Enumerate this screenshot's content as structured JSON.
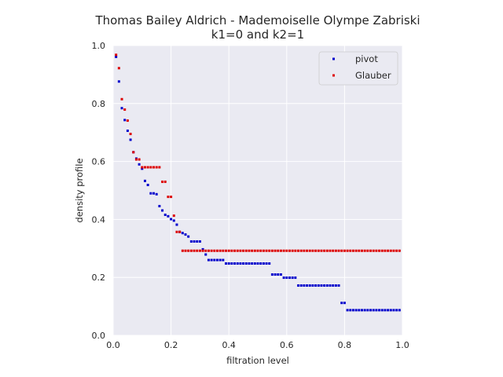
{
  "chart_data": {
    "type": "scatter",
    "title": "Thomas Bailey Aldrich - Mademoiselle Olympe Zabriski",
    "subtitle": "k1=0 and k2=1",
    "xlabel": "filtration level",
    "ylabel": "density profile",
    "xlim": [
      0.0,
      1.0
    ],
    "ylim": [
      0.0,
      1.0
    ],
    "xticks": [
      "0.0",
      "0.2",
      "0.4",
      "0.6",
      "0.8",
      "1.0"
    ],
    "yticks": [
      "0.0",
      "0.2",
      "0.4",
      "0.6",
      "0.8",
      "1.0"
    ],
    "grid": true,
    "legend_position": "top-right",
    "series": [
      {
        "name": "pivot",
        "color": "#0000cc",
        "points": [
          [
            0.01,
            0.961
          ],
          [
            0.02,
            0.876
          ],
          [
            0.03,
            0.784
          ],
          [
            0.04,
            0.743
          ],
          [
            0.05,
            0.706
          ],
          [
            0.06,
            0.675
          ],
          [
            0.07,
            0.632
          ],
          [
            0.08,
            0.61
          ],
          [
            0.09,
            0.59
          ],
          [
            0.1,
            0.575
          ],
          [
            0.11,
            0.533
          ],
          [
            0.12,
            0.519
          ],
          [
            0.13,
            0.49
          ],
          [
            0.14,
            0.49
          ],
          [
            0.15,
            0.487
          ],
          [
            0.16,
            0.446
          ],
          [
            0.17,
            0.431
          ],
          [
            0.18,
            0.416
          ],
          [
            0.19,
            0.411
          ],
          [
            0.2,
            0.401
          ],
          [
            0.21,
            0.396
          ],
          [
            0.22,
            0.382
          ],
          [
            0.23,
            0.357
          ],
          [
            0.24,
            0.353
          ],
          [
            0.25,
            0.348
          ],
          [
            0.26,
            0.341
          ],
          [
            0.27,
            0.324
          ],
          [
            0.28,
            0.324
          ],
          [
            0.29,
            0.324
          ],
          [
            0.3,
            0.324
          ],
          [
            0.31,
            0.297
          ],
          [
            0.32,
            0.279
          ],
          [
            0.33,
            0.26
          ],
          [
            0.34,
            0.26
          ],
          [
            0.35,
            0.26
          ],
          [
            0.36,
            0.26
          ],
          [
            0.37,
            0.26
          ],
          [
            0.38,
            0.26
          ],
          [
            0.39,
            0.248
          ],
          [
            0.4,
            0.248
          ],
          [
            0.41,
            0.248
          ],
          [
            0.42,
            0.248
          ],
          [
            0.43,
            0.248
          ],
          [
            0.44,
            0.248
          ],
          [
            0.45,
            0.248
          ],
          [
            0.46,
            0.248
          ],
          [
            0.47,
            0.248
          ],
          [
            0.48,
            0.248
          ],
          [
            0.49,
            0.248
          ],
          [
            0.5,
            0.248
          ],
          [
            0.51,
            0.248
          ],
          [
            0.52,
            0.248
          ],
          [
            0.53,
            0.248
          ],
          [
            0.54,
            0.248
          ],
          [
            0.55,
            0.21
          ],
          [
            0.56,
            0.21
          ],
          [
            0.57,
            0.21
          ],
          [
            0.58,
            0.21
          ],
          [
            0.59,
            0.199
          ],
          [
            0.6,
            0.199
          ],
          [
            0.61,
            0.199
          ],
          [
            0.62,
            0.199
          ],
          [
            0.63,
            0.199
          ],
          [
            0.64,
            0.172
          ],
          [
            0.65,
            0.172
          ],
          [
            0.66,
            0.172
          ],
          [
            0.67,
            0.172
          ],
          [
            0.68,
            0.172
          ],
          [
            0.69,
            0.172
          ],
          [
            0.7,
            0.172
          ],
          [
            0.71,
            0.172
          ],
          [
            0.72,
            0.172
          ],
          [
            0.73,
            0.172
          ],
          [
            0.74,
            0.172
          ],
          [
            0.75,
            0.172
          ],
          [
            0.76,
            0.172
          ],
          [
            0.77,
            0.172
          ],
          [
            0.78,
            0.172
          ],
          [
            0.79,
            0.112
          ],
          [
            0.8,
            0.112
          ],
          [
            0.81,
            0.087
          ],
          [
            0.82,
            0.087
          ],
          [
            0.83,
            0.087
          ],
          [
            0.84,
            0.087
          ],
          [
            0.85,
            0.087
          ],
          [
            0.86,
            0.087
          ],
          [
            0.87,
            0.087
          ],
          [
            0.88,
            0.087
          ],
          [
            0.89,
            0.087
          ],
          [
            0.9,
            0.087
          ],
          [
            0.91,
            0.087
          ],
          [
            0.92,
            0.087
          ],
          [
            0.93,
            0.087
          ],
          [
            0.94,
            0.087
          ],
          [
            0.95,
            0.087
          ],
          [
            0.96,
            0.087
          ],
          [
            0.97,
            0.087
          ],
          [
            0.98,
            0.087
          ],
          [
            0.99,
            0.087
          ]
        ]
      },
      {
        "name": "Glauber",
        "color": "#dd0000",
        "points": [
          [
            0.01,
            0.968
          ],
          [
            0.02,
            0.922
          ],
          [
            0.03,
            0.815
          ],
          [
            0.04,
            0.779
          ],
          [
            0.05,
            0.741
          ],
          [
            0.06,
            0.695
          ],
          [
            0.07,
            0.632
          ],
          [
            0.08,
            0.607
          ],
          [
            0.09,
            0.607
          ],
          [
            0.1,
            0.58
          ],
          [
            0.11,
            0.58
          ],
          [
            0.12,
            0.58
          ],
          [
            0.13,
            0.58
          ],
          [
            0.14,
            0.58
          ],
          [
            0.15,
            0.58
          ],
          [
            0.16,
            0.58
          ],
          [
            0.17,
            0.53
          ],
          [
            0.18,
            0.53
          ],
          [
            0.19,
            0.478
          ],
          [
            0.2,
            0.478
          ],
          [
            0.21,
            0.413
          ],
          [
            0.22,
            0.357
          ],
          [
            0.23,
            0.357
          ],
          [
            0.24,
            0.292
          ],
          [
            0.25,
            0.292
          ],
          [
            0.26,
            0.292
          ],
          [
            0.27,
            0.292
          ],
          [
            0.28,
            0.292
          ],
          [
            0.29,
            0.292
          ],
          [
            0.3,
            0.292
          ],
          [
            0.31,
            0.292
          ],
          [
            0.32,
            0.292
          ],
          [
            0.33,
            0.292
          ],
          [
            0.34,
            0.292
          ],
          [
            0.35,
            0.292
          ],
          [
            0.36,
            0.292
          ],
          [
            0.37,
            0.292
          ],
          [
            0.38,
            0.292
          ],
          [
            0.39,
            0.292
          ],
          [
            0.4,
            0.292
          ],
          [
            0.41,
            0.292
          ],
          [
            0.42,
            0.292
          ],
          [
            0.43,
            0.292
          ],
          [
            0.44,
            0.292
          ],
          [
            0.45,
            0.292
          ],
          [
            0.46,
            0.292
          ],
          [
            0.47,
            0.292
          ],
          [
            0.48,
            0.292
          ],
          [
            0.49,
            0.292
          ],
          [
            0.5,
            0.292
          ],
          [
            0.51,
            0.292
          ],
          [
            0.52,
            0.292
          ],
          [
            0.53,
            0.292
          ],
          [
            0.54,
            0.292
          ],
          [
            0.55,
            0.292
          ],
          [
            0.56,
            0.292
          ],
          [
            0.57,
            0.292
          ],
          [
            0.58,
            0.292
          ],
          [
            0.59,
            0.292
          ],
          [
            0.6,
            0.292
          ],
          [
            0.61,
            0.292
          ],
          [
            0.62,
            0.292
          ],
          [
            0.63,
            0.292
          ],
          [
            0.64,
            0.292
          ],
          [
            0.65,
            0.292
          ],
          [
            0.66,
            0.292
          ],
          [
            0.67,
            0.292
          ],
          [
            0.68,
            0.292
          ],
          [
            0.69,
            0.292
          ],
          [
            0.7,
            0.292
          ],
          [
            0.71,
            0.292
          ],
          [
            0.72,
            0.292
          ],
          [
            0.73,
            0.292
          ],
          [
            0.74,
            0.292
          ],
          [
            0.75,
            0.292
          ],
          [
            0.76,
            0.292
          ],
          [
            0.77,
            0.292
          ],
          [
            0.78,
            0.292
          ],
          [
            0.79,
            0.292
          ],
          [
            0.8,
            0.292
          ],
          [
            0.81,
            0.292
          ],
          [
            0.82,
            0.292
          ],
          [
            0.83,
            0.292
          ],
          [
            0.84,
            0.292
          ],
          [
            0.85,
            0.292
          ],
          [
            0.86,
            0.292
          ],
          [
            0.87,
            0.292
          ],
          [
            0.88,
            0.292
          ],
          [
            0.89,
            0.292
          ],
          [
            0.9,
            0.292
          ],
          [
            0.91,
            0.292
          ],
          [
            0.92,
            0.292
          ],
          [
            0.93,
            0.292
          ],
          [
            0.94,
            0.292
          ],
          [
            0.95,
            0.292
          ],
          [
            0.96,
            0.292
          ],
          [
            0.97,
            0.292
          ],
          [
            0.98,
            0.292
          ],
          [
            0.99,
            0.292
          ]
        ]
      }
    ]
  }
}
